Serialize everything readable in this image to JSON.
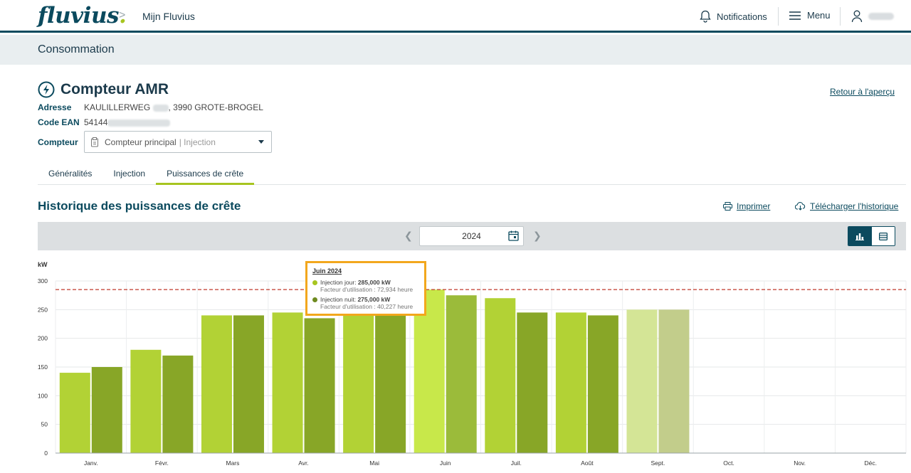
{
  "header": {
    "logo_text": "fluvius",
    "logo_dot": ".",
    "breadcrumb_sep": ">",
    "breadcrumb": "Mijn Fluvius",
    "notifications_label": "Notifications",
    "menu_label": "Menu"
  },
  "subheader": {
    "title": "Consommation"
  },
  "meter": {
    "title": "Compteur AMR",
    "back_link": "Retour à l'aperçu",
    "address_label": "Adresse",
    "address_prefix": "KAULILLERWEG",
    "address_suffix": ", 3990 GROTE-BROGEL",
    "ean_label": "Code EAN",
    "ean_prefix": "54144",
    "meter_label": "Compteur",
    "meter_value": "Compteur principal",
    "meter_value_muted": "| Injection"
  },
  "tabs": [
    {
      "label": "Généralités",
      "active": false
    },
    {
      "label": "Injection",
      "active": false
    },
    {
      "label": "Puissances de crête",
      "active": true
    }
  ],
  "section": {
    "title": "Historique des puissances de crête",
    "print_label": "Imprimer",
    "download_label": "Télécharger l'historique"
  },
  "toolbar": {
    "year": "2024"
  },
  "colors": {
    "brand_dark": "#0b4a5e",
    "brand_green": "#a7c520",
    "tooltip_border": "#f2a71d",
    "threshold_line": "#c0392b"
  },
  "tooltip": {
    "title": "Juin 2024",
    "day_label": "Injection jour: ",
    "day_value": "285,000 kW",
    "day_sub": "Facteur d'utilisation : 72,934 heure",
    "night_label": "Injection nuit: ",
    "night_value": "275,000 kW",
    "night_sub": "Facteur d'utilisation : 40,227 heure"
  },
  "chart_data": {
    "type": "bar",
    "ylabel": "kW",
    "ylim": [
      0,
      300
    ],
    "yticks": [
      0,
      50,
      100,
      150,
      200,
      250,
      300
    ],
    "threshold": 285,
    "categories": [
      "Janv.",
      "Févr.",
      "Mars",
      "Avr.",
      "Mai",
      "Juin",
      "Juil.",
      "Août",
      "Sept.",
      "Oct.",
      "Nov.",
      "Déc."
    ],
    "series": [
      {
        "name": "Injection jour",
        "values": [
          140,
          180,
          240,
          245,
          240,
          285,
          270,
          245,
          250,
          null,
          null,
          null
        ]
      },
      {
        "name": "Injection nuit",
        "values": [
          150,
          170,
          240,
          235,
          240,
          275,
          245,
          240,
          250,
          null,
          null,
          null
        ]
      }
    ]
  }
}
